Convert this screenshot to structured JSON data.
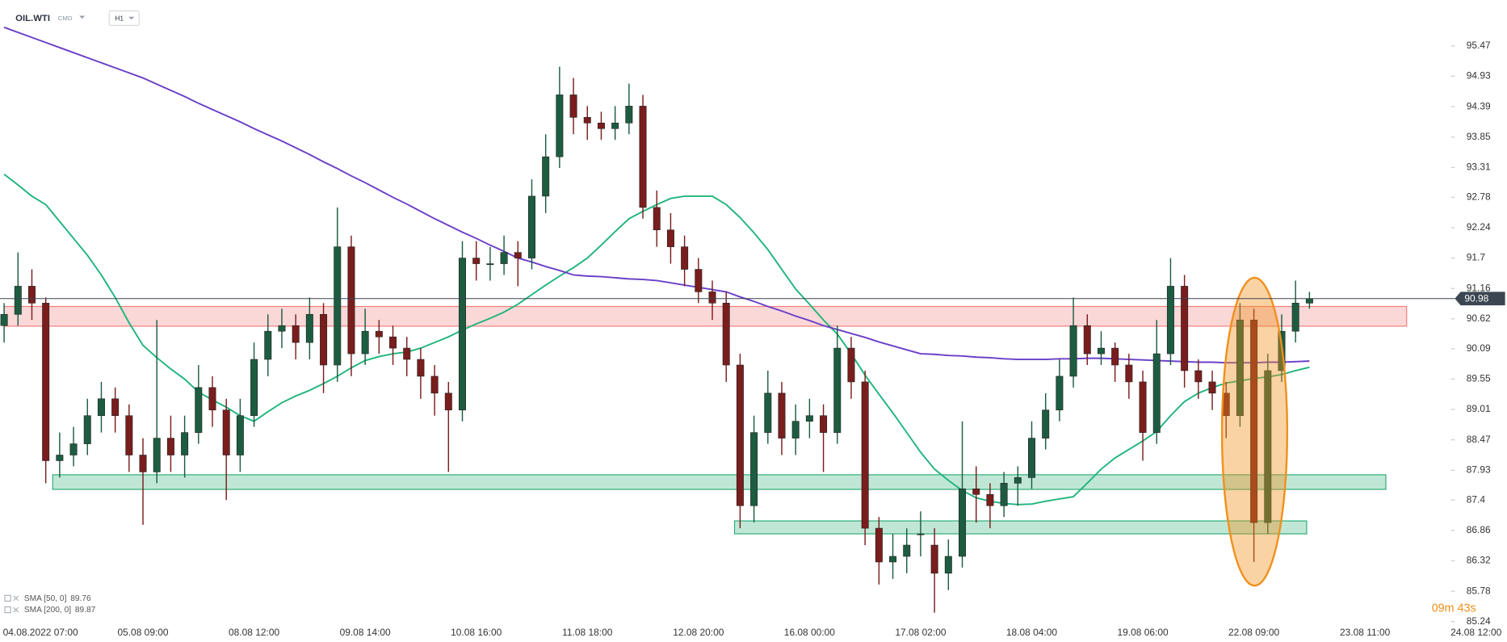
{
  "header": {
    "symbol": "OIL.WTI",
    "market": "CMD",
    "interval": "H1"
  },
  "countdown": "09m 43s",
  "chart_data": {
    "type": "candlestick",
    "categories": [
      null,
      null,
      "04.08.2022 07:00",
      null,
      null,
      null,
      null,
      null,
      null,
      null,
      "05.08 09:00",
      null,
      null,
      null,
      null,
      null,
      null,
      null,
      "08.08 12:00",
      null,
      null,
      null,
      null,
      null,
      null,
      null,
      "09.08 14:00",
      null,
      null,
      null,
      null,
      null,
      null,
      null,
      "10.08 16:00",
      null,
      null,
      null,
      null,
      null,
      null,
      null,
      "11.08 18:00",
      null,
      null,
      null,
      null,
      null,
      null,
      null,
      "12.08 20:00",
      null,
      null,
      null,
      null,
      null,
      null,
      null,
      "16.08 00:00",
      null,
      null,
      null,
      null,
      null,
      null,
      null,
      "17.08 02:00",
      null,
      null,
      null,
      null,
      null,
      null,
      null,
      "18.08 04:00",
      null,
      null,
      null,
      null,
      null,
      null,
      null,
      "19.08 06:00",
      null,
      null,
      null,
      null,
      null,
      null,
      null,
      "22.08 09:00",
      null,
      null,
      null,
      null,
      null,
      null,
      null,
      "23.08 11:00",
      null,
      null,
      null,
      null,
      null,
      null,
      null,
      "24.08 12:00"
    ],
    "open": [
      90.5,
      90.7,
      91.2,
      90.9,
      88.1,
      88.2,
      88.4,
      88.9,
      89.2,
      88.9,
      88.2,
      87.9,
      88.5,
      88.2,
      88.6,
      89.4,
      89.0,
      88.2,
      88.9,
      89.9,
      90.4,
      90.5,
      90.2,
      90.7,
      89.8,
      91.9,
      90.0,
      90.4,
      90.3,
      90.1,
      89.9,
      89.6,
      89.3,
      89.0,
      91.7,
      91.6,
      91.6,
      91.8,
      91.7,
      92.8,
      93.5,
      94.6,
      94.2,
      94.1,
      94.0,
      94.1,
      94.4,
      92.6,
      92.2,
      91.9,
      91.5,
      91.1,
      90.9,
      89.8,
      87.3,
      88.6,
      89.3,
      88.5,
      88.8,
      88.9,
      88.6,
      90.1,
      89.5,
      86.9,
      86.3,
      86.4,
      86.8,
      86.6,
      86.1,
      86.4,
      87.6,
      87.5,
      87.3,
      87.7,
      87.8,
      88.5,
      89.0,
      89.6,
      90.5,
      90.0,
      90.1,
      89.8,
      89.5,
      88.6,
      90.0,
      91.2,
      89.7,
      89.5,
      89.3,
      88.9,
      90.6,
      87.0,
      89.7,
      90.4,
      90.9,
      null,
      null,
      null,
      null,
      null,
      null,
      null,
      null,
      null,
      null,
      null,
      null
    ],
    "high": [
      90.9,
      91.8,
      91.5,
      91.0,
      88.6,
      88.7,
      89.2,
      89.5,
      89.4,
      89.1,
      88.5,
      90.6,
      88.9,
      88.9,
      89.8,
      89.6,
      89.2,
      89.2,
      90.2,
      90.7,
      90.8,
      90.7,
      91.0,
      90.9,
      92.6,
      92.1,
      90.8,
      90.6,
      90.5,
      90.3,
      90.1,
      89.8,
      89.5,
      92.0,
      92.0,
      91.9,
      92.1,
      92.0,
      93.1,
      93.9,
      95.1,
      94.9,
      94.4,
      94.3,
      94.4,
      94.8,
      94.6,
      92.9,
      92.5,
      92.1,
      91.7,
      91.3,
      91.1,
      90.0,
      88.9,
      89.7,
      89.5,
      89.1,
      89.2,
      89.1,
      90.5,
      90.3,
      89.7,
      87.1,
      86.8,
      86.9,
      87.2,
      86.9,
      86.7,
      88.8,
      88.0,
      87.7,
      87.9,
      88.0,
      88.8,
      89.3,
      89.9,
      91.0,
      90.7,
      90.4,
      90.2,
      90.0,
      89.7,
      90.6,
      91.7,
      91.4,
      89.9,
      89.7,
      89.5,
      90.9,
      90.8,
      90.0,
      90.7,
      91.3,
      91.1,
      null,
      null,
      null,
      null,
      null,
      null,
      null,
      null,
      null,
      null,
      null,
      null
    ],
    "low": [
      90.2,
      90.5,
      90.6,
      87.7,
      87.8,
      88.0,
      88.2,
      88.6,
      88.6,
      87.9,
      86.96,
      87.7,
      87.9,
      87.8,
      88.4,
      88.7,
      87.4,
      87.9,
      88.7,
      89.6,
      90.1,
      89.9,
      89.9,
      89.3,
      89.5,
      89.6,
      89.8,
      90.0,
      89.8,
      89.6,
      89.2,
      88.9,
      87.9,
      88.8,
      91.3,
      91.3,
      91.4,
      91.2,
      91.5,
      92.5,
      93.3,
      93.9,
      93.8,
      93.8,
      93.8,
      93.9,
      92.4,
      91.9,
      91.6,
      91.2,
      90.9,
      90.6,
      89.5,
      86.9,
      87.0,
      88.4,
      88.2,
      88.2,
      88.5,
      87.9,
      88.4,
      89.2,
      86.6,
      85.9,
      86.0,
      86.1,
      86.4,
      85.4,
      85.8,
      86.2,
      87.0,
      86.9,
      87.1,
      87.3,
      87.6,
      88.3,
      88.8,
      89.4,
      89.8,
      89.8,
      89.5,
      89.2,
      88.1,
      88.4,
      89.8,
      89.4,
      89.2,
      89.0,
      88.5,
      88.7,
      86.3,
      86.8,
      89.5,
      90.2,
      90.8,
      null,
      null,
      null,
      null,
      null,
      null,
      null,
      null,
      null,
      null,
      null,
      null
    ],
    "close": [
      90.7,
      91.2,
      90.9,
      88.1,
      88.2,
      88.4,
      88.9,
      89.2,
      88.9,
      88.2,
      87.9,
      88.5,
      88.2,
      88.6,
      89.4,
      89.0,
      88.2,
      88.9,
      89.9,
      90.4,
      90.5,
      90.2,
      90.7,
      89.8,
      91.9,
      90.0,
      90.4,
      90.3,
      90.1,
      89.9,
      89.6,
      89.3,
      89.0,
      91.7,
      91.6,
      91.6,
      91.8,
      91.7,
      92.8,
      93.5,
      94.6,
      94.2,
      94.1,
      94.0,
      94.1,
      94.4,
      92.6,
      92.2,
      91.9,
      91.5,
      91.1,
      90.9,
      89.8,
      87.3,
      88.6,
      89.3,
      88.5,
      88.8,
      88.9,
      88.6,
      90.1,
      89.5,
      86.9,
      86.3,
      86.4,
      86.6,
      86.8,
      86.1,
      86.4,
      87.6,
      87.5,
      87.3,
      87.7,
      87.8,
      88.5,
      89.0,
      89.6,
      90.5,
      90.0,
      90.1,
      89.8,
      89.5,
      88.6,
      90.0,
      91.2,
      89.7,
      89.5,
      89.3,
      88.9,
      90.6,
      87.0,
      89.7,
      90.4,
      90.9,
      90.98,
      null,
      null,
      null,
      null,
      null,
      null,
      null,
      null,
      null,
      null,
      null,
      null
    ],
    "up_color": "#1d5c40",
    "down_color": "#7a1d1d",
    "series": [
      {
        "name": "SMA [50, 0]",
        "color": "#1fb57c",
        "last_value": 89.76,
        "values": [
          93.19,
          93.0,
          92.8,
          92.65,
          92.35,
          92.05,
          91.75,
          91.4,
          91.0,
          90.55,
          90.15,
          89.93,
          89.73,
          89.55,
          89.32,
          89.18,
          89.05,
          88.9,
          88.8,
          88.97,
          89.13,
          89.25,
          89.35,
          89.47,
          89.6,
          89.75,
          89.88,
          89.95,
          90.0,
          90.03,
          90.1,
          90.2,
          90.3,
          90.42,
          90.53,
          90.63,
          90.74,
          90.88,
          91.05,
          91.22,
          91.38,
          91.53,
          91.7,
          91.93,
          92.17,
          92.4,
          92.53,
          92.65,
          92.76,
          92.8,
          92.8,
          92.8,
          92.65,
          92.42,
          92.15,
          91.85,
          91.5,
          91.15,
          90.88,
          90.6,
          90.35,
          90.0,
          89.62,
          89.28,
          88.95,
          88.6,
          88.25,
          87.95,
          87.75,
          87.57,
          87.44,
          87.38,
          87.34,
          87.32,
          87.33,
          87.38,
          87.42,
          87.46,
          87.7,
          87.95,
          88.15,
          88.3,
          88.45,
          88.62,
          88.9,
          89.15,
          89.3,
          89.4,
          89.48,
          89.52,
          89.56,
          89.59,
          89.63,
          89.7,
          89.76,
          null,
          null,
          null,
          null,
          null,
          null,
          null,
          null,
          null,
          null,
          null,
          null
        ]
      },
      {
        "name": "SMA [200, 0]",
        "color": "#6a3fc8",
        "last_value": 89.87,
        "values": [
          95.8,
          95.71,
          95.62,
          95.53,
          95.44,
          95.35,
          95.26,
          95.17,
          95.08,
          94.99,
          94.9,
          94.79,
          94.68,
          94.57,
          94.45,
          94.34,
          94.23,
          94.12,
          94.0,
          93.89,
          93.78,
          93.66,
          93.54,
          93.41,
          93.29,
          93.16,
          93.04,
          92.91,
          92.78,
          92.66,
          92.53,
          92.4,
          92.28,
          92.16,
          92.05,
          91.93,
          91.82,
          91.7,
          91.63,
          91.55,
          91.48,
          91.4,
          91.38,
          91.37,
          91.35,
          91.33,
          91.32,
          91.3,
          91.26,
          91.22,
          91.18,
          91.14,
          91.1,
          91.01,
          90.93,
          90.84,
          90.76,
          90.67,
          90.59,
          90.5,
          90.43,
          90.36,
          90.29,
          90.21,
          90.14,
          90.07,
          90.0,
          89.99,
          89.97,
          89.96,
          89.94,
          89.93,
          89.91,
          89.9,
          89.9,
          89.9,
          89.91,
          89.91,
          89.92,
          89.92,
          89.91,
          89.9,
          89.89,
          89.88,
          89.87,
          89.86,
          89.85,
          89.85,
          89.84,
          89.84,
          89.84,
          89.85,
          89.85,
          89.86,
          89.87,
          null,
          null,
          null,
          null,
          null,
          null,
          null,
          null,
          null,
          null,
          null,
          null
        ]
      }
    ],
    "last_price": 90.98,
    "zones": [
      {
        "low": 90.49,
        "high": 90.84,
        "start": 0,
        "end": 101,
        "color": "#f27d7d"
      },
      {
        "low": 87.59,
        "high": 87.85,
        "start": 3.5,
        "end": 99.5,
        "color": "#2fae78"
      },
      {
        "low": 86.8,
        "high": 87.03,
        "start": 52.6,
        "end": 93.8,
        "color": "#2fae78"
      }
    ],
    "highlight": {
      "low": 85.88,
      "high": 91.35,
      "start": 87.7,
      "end": 92.4,
      "color": "#f0901c"
    },
    "ylim": [
      85.21,
      96.28
    ],
    "yticks": [
      95.47,
      94.93,
      94.39,
      93.85,
      93.31,
      92.78,
      92.24,
      91.7,
      91.16,
      90.62,
      90.09,
      89.55,
      89.01,
      88.47,
      87.93,
      87.4,
      86.86,
      86.32,
      85.78,
      85.24
    ],
    "grid": false
  }
}
